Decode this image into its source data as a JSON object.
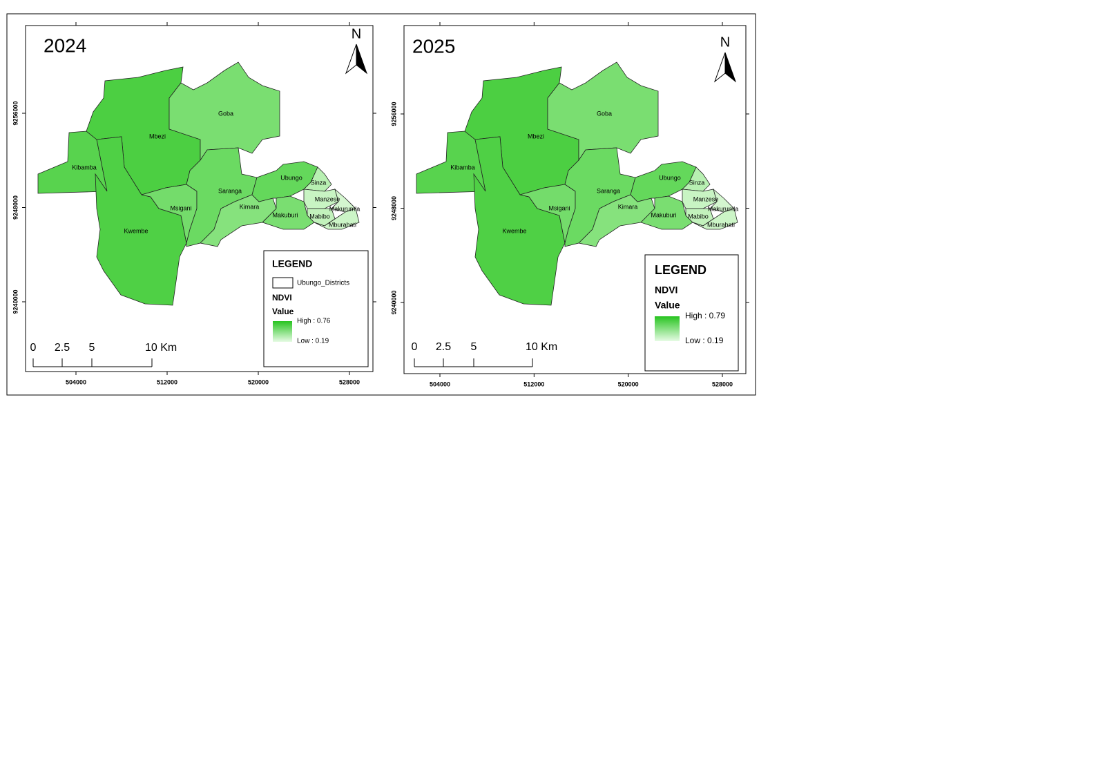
{
  "maps": [
    {
      "title": "2024",
      "north": "N",
      "x_ticks": [
        504000,
        512000,
        520000,
        528000
      ],
      "y_ticks": [
        9256000,
        9248000,
        9240000
      ],
      "districts": [
        "Kibamba",
        "Mbezi",
        "Goba",
        "Kwembe",
        "Msigani",
        "Saranga",
        "Kimara",
        "Ubungo",
        "Makuburi",
        "Sinza",
        "Manzese",
        "Makurumla",
        "Mabibo",
        "Mburahati"
      ],
      "scale_bar": [
        "0",
        "2.5",
        "5",
        "10 Km"
      ],
      "legend": {
        "title": "LEGEND",
        "layer": "Ubungo_Districts",
        "field": "NDVI",
        "value": "Value",
        "high": "High : 0.76",
        "low": "Low : 0.19"
      }
    },
    {
      "title": "2025",
      "north": "N",
      "x_ticks": [
        504000,
        512000,
        520000,
        528000
      ],
      "y_ticks": [
        9256000,
        9248000,
        9240000
      ],
      "districts": [
        "Kibamba",
        "Mbezi",
        "Goba",
        "Kwembe",
        "Msigani",
        "Saranga",
        "Kimara",
        "Ubungo",
        "Makuburi",
        "Sinza",
        "Manzese",
        "Makurumla",
        "Mabibo",
        "Mburahati"
      ],
      "scale_bar": [
        "0",
        "2.5",
        "5",
        "10 Km"
      ],
      "legend": {
        "title": "LEGEND",
        "field": "NDVI",
        "value": "Value",
        "high": "High : 0.79",
        "low": "Low : 0.19"
      }
    }
  ]
}
